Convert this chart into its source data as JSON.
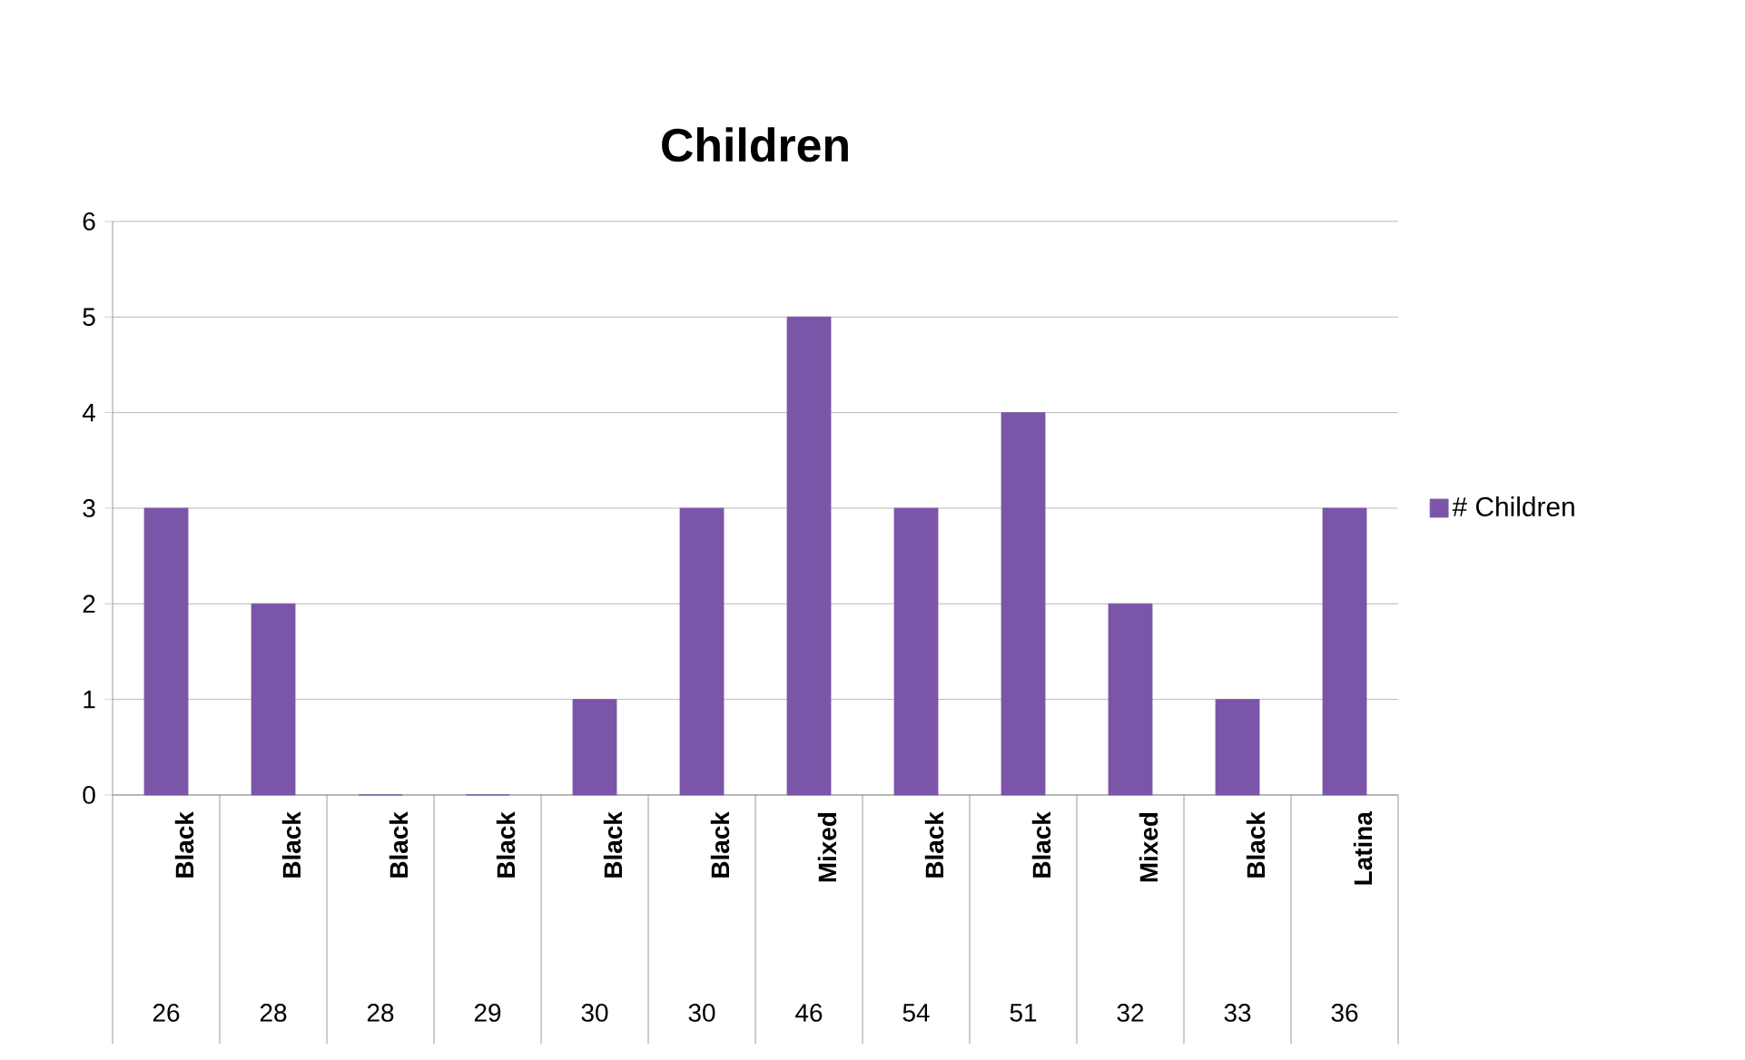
{
  "chart_data": {
    "type": "bar",
    "title": "Children",
    "categories": [
      "Black",
      "Black",
      "Black",
      "Black",
      "Black",
      "Black",
      "Mixed",
      "Black",
      "Black",
      "Mixed",
      "Black",
      "Latina"
    ],
    "annotations": [
      "26",
      "28",
      "28",
      "29",
      "30",
      "30",
      "46",
      "54",
      "51",
      "32",
      "33",
      "36"
    ],
    "series": [
      {
        "name": "# Children",
        "color": "#7b55a8",
        "values": [
          3,
          2,
          0,
          0,
          1,
          3,
          5,
          3,
          4,
          2,
          1,
          3
        ]
      }
    ],
    "ylim": [
      0,
      6
    ],
    "yticks": [
      0,
      1,
      2,
      3,
      4,
      5,
      6
    ],
    "grid": "y",
    "legend": "right"
  }
}
